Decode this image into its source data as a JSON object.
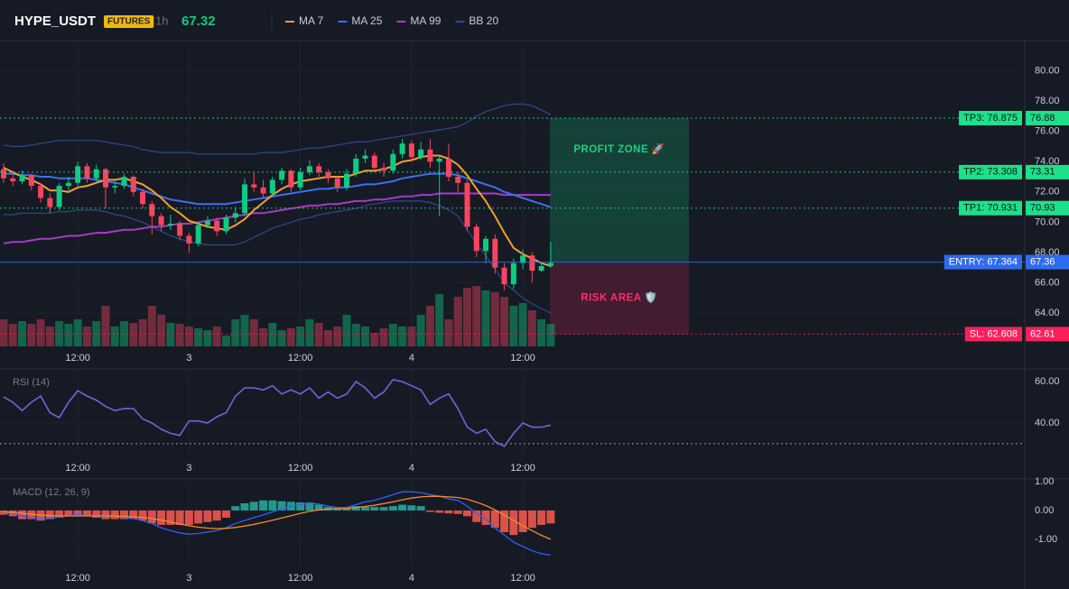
{
  "chart_data": {
    "type": "candlestick",
    "symbol": "HYPE_USDT",
    "badge": "FUTURES",
    "interval": "1h",
    "last_price": 67.32,
    "up_color": "#0ecb81",
    "down_color": "#f6465d",
    "categories": [
      null,
      null,
      null,
      null,
      null,
      null,
      null,
      null,
      "12:00",
      null,
      null,
      null,
      null,
      null,
      null,
      null,
      null,
      null,
      null,
      null,
      "3",
      null,
      null,
      null,
      null,
      null,
      null,
      null,
      null,
      null,
      null,
      null,
      "12:00",
      null,
      null,
      null,
      null,
      null,
      null,
      null,
      null,
      null,
      null,
      null,
      "4",
      null,
      null,
      null,
      null,
      null,
      null,
      null,
      null,
      null,
      null,
      null,
      "12:00",
      null,
      null,
      null
    ],
    "ylim": [
      61.8,
      81.4
    ],
    "yticks": [
      {
        "value": 80,
        "label": "80.00"
      },
      {
        "value": 78,
        "label": "78.00"
      },
      {
        "value": 76,
        "label": "76.00"
      },
      {
        "value": 74,
        "label": "74.00"
      },
      {
        "value": 72,
        "label": "72.00"
      },
      {
        "value": 70,
        "label": "70.00"
      },
      {
        "value": 68,
        "label": "68.00"
      },
      {
        "value": 66,
        "label": "66.00"
      },
      {
        "value": 64,
        "label": "64.00"
      }
    ],
    "ohlc": {
      "open": [
        73.5,
        72.9,
        72.7,
        73.1,
        72.4,
        71.6,
        71.0,
        72.4,
        72.6,
        73.7,
        72.9,
        73.5,
        72.3,
        72.4,
        73.0,
        72.0,
        71.2,
        70.4,
        69.8,
        69.9,
        69.1,
        68.6,
        69.8,
        70.1,
        69.4,
        70.3,
        70.6,
        72.5,
        72.3,
        71.9,
        72.8,
        73.4,
        72.3,
        73.3,
        73.7,
        73.3,
        72.9,
        72.3,
        73.2,
        74.2,
        74.4,
        73.6,
        73.4,
        74.5,
        75.2,
        74.3,
        74.8,
        74.0,
        74.2,
        73.0,
        72.6,
        69.7,
        68.1,
        68.9,
        67.0,
        65.9,
        67.3,
        67.8,
        66.8,
        67.1
      ],
      "high": [
        73.9,
        73.3,
        73.4,
        73.2,
        72.6,
        71.9,
        72.6,
        73.0,
        74.0,
        73.9,
        73.8,
        73.6,
        72.8,
        73.2,
        73.1,
        72.2,
        71.4,
        70.6,
        70.5,
        70.1,
        69.3,
        70.0,
        70.4,
        70.3,
        70.5,
        71.0,
        72.9,
        73.3,
        72.8,
        73.0,
        73.6,
        73.5,
        73.6,
        74.1,
        73.9,
        73.5,
        73.0,
        73.5,
        74.5,
        74.8,
        74.6,
        73.9,
        74.8,
        75.5,
        75.4,
        75.3,
        75.5,
        74.4,
        75.2,
        73.3,
        72.8,
        69.9,
        69.1,
        69.2,
        67.3,
        67.6,
        68.2,
        68.0,
        67.4,
        68.7
      ],
      "low": [
        72.6,
        72.4,
        72.5,
        72.1,
        71.3,
        70.6,
        70.8,
        72.1,
        72.4,
        72.6,
        72.7,
        70.9,
        71.9,
        72.2,
        71.7,
        70.9,
        69.2,
        69.4,
        69.5,
        68.8,
        68.0,
        68.4,
        69.6,
        69.1,
        69.2,
        70.0,
        70.4,
        72.0,
        71.6,
        71.7,
        72.5,
        72.0,
        72.1,
        73.1,
        73.0,
        72.6,
        72.0,
        72.1,
        73.0,
        73.9,
        73.3,
        73.0,
        73.2,
        74.2,
        74.0,
        74.1,
        73.6,
        70.4,
        72.7,
        72.0,
        69.4,
        67.7,
        67.3,
        66.6,
        65.5,
        65.6,
        66.9,
        66.0,
        66.7,
        67.0
      ],
      "close": [
        72.9,
        72.7,
        73.1,
        72.4,
        71.6,
        71.0,
        72.4,
        72.6,
        73.7,
        72.9,
        73.5,
        72.3,
        72.4,
        73.0,
        72.0,
        71.2,
        70.4,
        69.8,
        69.9,
        69.1,
        68.6,
        69.8,
        70.1,
        69.4,
        70.3,
        70.6,
        72.5,
        72.3,
        71.9,
        72.8,
        73.4,
        72.3,
        73.3,
        73.7,
        73.3,
        72.9,
        72.3,
        73.2,
        74.2,
        74.4,
        73.6,
        73.4,
        74.5,
        75.2,
        74.3,
        74.8,
        74.0,
        74.2,
        73.0,
        72.6,
        69.7,
        68.1,
        68.9,
        67.0,
        65.9,
        67.3,
        67.8,
        66.8,
        67.1,
        67.32
      ]
    },
    "volume": [
      30,
      25,
      28,
      25,
      30,
      22,
      28,
      25,
      30,
      22,
      28,
      45,
      22,
      28,
      26,
      30,
      45,
      35,
      26,
      25,
      22,
      20,
      18,
      22,
      12,
      30,
      35,
      30,
      20,
      26,
      18,
      20,
      22,
      30,
      26,
      18,
      22,
      35,
      25,
      22,
      15,
      20,
      25,
      22,
      22,
      35,
      45,
      58,
      30,
      55,
      65,
      67,
      62,
      60,
      55,
      45,
      48,
      40,
      30,
      25
    ],
    "series": [
      {
        "name": "MA 7",
        "color": "#f0a030",
        "values": [
          73.6,
          73.3,
          73.0,
          72.8,
          72.5,
          72.1,
          72.1,
          72.0,
          72.3,
          72.4,
          72.6,
          72.8,
          72.8,
          72.9,
          72.7,
          72.5,
          72.1,
          71.6,
          71.0,
          70.6,
          70.1,
          69.9,
          69.7,
          69.6,
          69.5,
          69.8,
          70.2,
          70.8,
          71.3,
          71.8,
          72.2,
          72.5,
          72.7,
          72.8,
          72.9,
          73.0,
          73.0,
          73.0,
          73.2,
          73.4,
          73.4,
          73.5,
          73.7,
          74.0,
          74.1,
          74.3,
          74.4,
          74.4,
          74.2,
          73.8,
          73.1,
          72.2,
          71.4,
          70.4,
          69.3,
          68.3,
          67.9,
          67.6,
          67.3,
          67.1
        ]
      },
      {
        "name": "MA 25",
        "color": "#3d6ff0",
        "values": [
          73.2,
          73.2,
          73.1,
          73.1,
          73.0,
          73.0,
          72.9,
          72.9,
          72.9,
          72.9,
          72.8,
          72.7,
          72.6,
          72.5,
          72.3,
          72.1,
          71.9,
          71.7,
          71.5,
          71.4,
          71.3,
          71.2,
          71.2,
          71.2,
          71.2,
          71.3,
          71.4,
          71.5,
          71.6,
          71.7,
          71.8,
          71.9,
          72.0,
          72.1,
          72.2,
          72.2,
          72.3,
          72.3,
          72.4,
          72.5,
          72.5,
          72.6,
          72.7,
          72.9,
          73.0,
          73.1,
          73.2,
          73.2,
          73.2,
          73.1,
          72.9,
          72.7,
          72.5,
          72.3,
          72.0,
          71.8,
          71.6,
          71.4,
          71.2,
          71.0
        ]
      },
      {
        "name": "MA 99",
        "color": "#a63cc4",
        "values": [
          68.6,
          68.7,
          68.7,
          68.8,
          68.9,
          68.9,
          69.0,
          69.1,
          69.1,
          69.2,
          69.3,
          69.3,
          69.4,
          69.5,
          69.5,
          69.6,
          69.7,
          69.7,
          69.8,
          69.9,
          69.9,
          70.0,
          70.1,
          70.2,
          70.3,
          70.4,
          70.5,
          70.6,
          70.6,
          70.7,
          70.8,
          70.9,
          71.0,
          71.1,
          71.1,
          71.2,
          71.2,
          71.3,
          71.4,
          71.4,
          71.5,
          71.5,
          71.6,
          71.7,
          71.7,
          71.8,
          71.8,
          71.9,
          71.9,
          71.9,
          71.9,
          71.9,
          71.9,
          71.9,
          71.8,
          71.8,
          71.8,
          71.8,
          71.8,
          71.8
        ]
      },
      {
        "name": "BB 20",
        "color": "#2c4a8c",
        "upper": [
          75.1,
          75.0,
          75.0,
          75.1,
          75.2,
          75.3,
          75.4,
          75.4,
          75.4,
          75.4,
          75.4,
          75.3,
          75.2,
          75.1,
          75.0,
          74.8,
          74.7,
          74.6,
          74.6,
          74.6,
          74.6,
          74.5,
          74.5,
          74.5,
          74.5,
          74.5,
          74.5,
          74.5,
          74.6,
          74.6,
          74.6,
          74.7,
          74.8,
          74.9,
          74.9,
          75.0,
          75.1,
          75.2,
          75.3,
          75.3,
          75.4,
          75.5,
          75.6,
          75.7,
          75.8,
          75.9,
          76.0,
          76.1,
          76.2,
          76.3,
          76.6,
          77.0,
          77.3,
          77.5,
          77.7,
          77.8,
          77.8,
          77.7,
          77.4,
          77.1
        ],
        "lower": [
          70.5,
          70.5,
          70.6,
          70.6,
          70.6,
          70.6,
          70.7,
          70.7,
          70.8,
          70.8,
          70.8,
          70.7,
          70.5,
          70.4,
          70.2,
          70.0,
          69.7,
          69.4,
          69.1,
          68.9,
          68.7,
          68.6,
          68.5,
          68.5,
          68.5,
          68.5,
          68.7,
          69.0,
          69.3,
          69.6,
          69.8,
          70.0,
          70.2,
          70.3,
          70.5,
          70.6,
          70.7,
          70.8,
          70.9,
          71.1,
          71.2,
          71.3,
          71.4,
          71.4,
          71.4,
          71.4,
          71.3,
          71.1,
          70.8,
          70.4,
          69.5,
          68.6,
          67.8,
          66.9,
          66.0,
          65.5,
          65.0,
          64.6,
          64.3,
          64.0
        ]
      }
    ],
    "levels": [
      {
        "label": "TP3: 76.875",
        "value": 76.875,
        "axis_label": "76.88",
        "color": "#1ee08a",
        "text_color": "#0b1a12",
        "dash": true
      },
      {
        "label": "TP2: 73.308",
        "value": 73.308,
        "axis_label": "73.31",
        "color": "#1ee08a",
        "text_color": "#0b1a12",
        "dash": true
      },
      {
        "label": "TP1: 70.931",
        "value": 70.931,
        "axis_label": "70.93",
        "color": "#1ee08a",
        "text_color": "#0b1a12",
        "dash": true
      },
      {
        "label": "ENTRY: 67.364",
        "value": 67.364,
        "axis_label": "67.36",
        "color": "#2f6bf0",
        "text_color": "#ffffff",
        "dash": false
      },
      {
        "label": "SL: 62.608",
        "value": 62.608,
        "axis_label": "62.61",
        "color": "#ff1f5a",
        "text_color": "#ffffff",
        "dash": true
      }
    ],
    "zones": [
      {
        "label": "PROFIT ZONE 🚀",
        "color": "#0ecb81",
        "text_color": "#1fcf7c"
      },
      {
        "label": "RISK AREA 🛡️",
        "color": "#e0245e",
        "text_color": "#ff2d6a"
      }
    ],
    "rsi": {
      "label": "RSI (14)",
      "color": "#7e5ed8",
      "values": [
        52.6,
        50,
        46,
        50,
        53,
        45,
        42.6,
        50,
        55.6,
        53,
        51,
        48,
        46,
        47,
        47,
        42,
        40,
        37,
        35,
        34,
        41,
        41,
        40,
        43,
        45,
        53,
        57,
        57,
        56,
        58,
        54,
        56,
        54,
        57,
        52,
        55,
        52,
        54,
        60,
        57,
        52,
        55,
        61,
        60,
        58,
        56,
        49,
        52,
        54,
        47,
        38,
        35,
        37,
        31,
        28.7,
        35,
        40,
        38,
        38,
        39
      ],
      "ylim": [
        24.3,
        65.7
      ],
      "yticks": [
        {
          "value": 60,
          "label": "60.00"
        },
        {
          "value": 40,
          "label": "40.00"
        }
      ],
      "level": 30
    },
    "macd": {
      "label": "MACD (12, 26, 9)",
      "macd": {
        "color": "#2f62f5",
        "values": [
          -0.06,
          -0.1,
          -0.2,
          -0.25,
          -0.3,
          -0.28,
          -0.22,
          -0.18,
          -0.15,
          -0.18,
          -0.2,
          -0.2,
          -0.22,
          -0.25,
          -0.28,
          -0.35,
          -0.45,
          -0.6,
          -0.7,
          -0.78,
          -0.82,
          -0.8,
          -0.75,
          -0.7,
          -0.6,
          -0.45,
          -0.35,
          -0.25,
          -0.15,
          -0.05,
          0.05,
          0.15,
          0.2,
          0.25,
          0.22,
          0.15,
          0.1,
          0.1,
          0.2,
          0.3,
          0.35,
          0.45,
          0.55,
          0.65,
          0.65,
          0.62,
          0.55,
          0.5,
          0.4,
          0.35,
          0.15,
          -0.1,
          -0.3,
          -0.6,
          -0.85,
          -1.1,
          -1.25,
          -1.4,
          -1.5,
          -1.55
        ]
      },
      "signal": {
        "color": "#f28c28",
        "values": [
          -0.05,
          -0.07,
          -0.1,
          -0.13,
          -0.16,
          -0.18,
          -0.19,
          -0.19,
          -0.19,
          -0.19,
          -0.19,
          -0.19,
          -0.2,
          -0.21,
          -0.22,
          -0.24,
          -0.28,
          -0.33,
          -0.4,
          -0.47,
          -0.53,
          -0.58,
          -0.61,
          -0.63,
          -0.62,
          -0.59,
          -0.54,
          -0.48,
          -0.41,
          -0.34,
          -0.26,
          -0.18,
          -0.1,
          -0.03,
          0.02,
          0.05,
          0.06,
          0.07,
          0.1,
          0.14,
          0.18,
          0.24,
          0.3,
          0.37,
          0.43,
          0.47,
          0.49,
          0.49,
          0.47,
          0.45,
          0.39,
          0.29,
          0.17,
          0.02,
          -0.16,
          -0.35,
          -0.53,
          -0.7,
          -0.86,
          -1.0
        ]
      },
      "hist": [
        -0.15,
        -0.2,
        -0.3,
        -0.3,
        -0.35,
        -0.3,
        -0.25,
        -0.2,
        -0.15,
        -0.2,
        -0.25,
        -0.3,
        -0.3,
        -0.3,
        -0.3,
        -0.35,
        -0.45,
        -0.5,
        -0.5,
        -0.5,
        -0.5,
        -0.45,
        -0.4,
        -0.35,
        -0.25,
        0.15,
        0.25,
        0.3,
        0.35,
        0.35,
        0.32,
        0.3,
        0.28,
        0.28,
        0.2,
        0.12,
        0.1,
        0.12,
        0.15,
        0.12,
        0.12,
        0.12,
        0.15,
        0.2,
        0.18,
        0.15,
        -0.05,
        -0.08,
        -0.1,
        -0.12,
        -0.2,
        -0.4,
        -0.5,
        -0.6,
        -0.75,
        -0.85,
        -0.75,
        -0.6,
        -0.5,
        -0.45
      ],
      "hist_up_color": "#26a69a",
      "hist_down_color": "#f0584f",
      "ylim": [
        -1.94,
        1.03
      ],
      "yticks": [
        {
          "value": 1,
          "label": "1.00"
        },
        {
          "value": 0,
          "label": "0.00"
        },
        {
          "value": -1,
          "label": "-1.00"
        }
      ]
    }
  }
}
